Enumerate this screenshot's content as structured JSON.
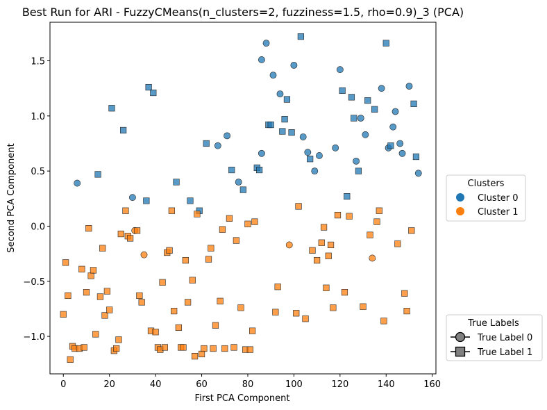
{
  "chart_data": {
    "type": "scatter",
    "title": "Best Run for ARI - FuzzyCMeans(n_clusters=2, fuzziness=1.5, rho=0.9)_3 (PCA)",
    "xlabel": "First PCA Component",
    "ylabel": "Second PCA Component",
    "xlim": [
      -5.8,
      161.6
    ],
    "ylim": [
      -1.34,
      1.85
    ],
    "xticks": [
      0,
      20,
      40,
      60,
      80,
      100,
      120,
      140,
      160
    ],
    "yticks": [
      -1.0,
      -0.5,
      0.0,
      0.5,
      1.0,
      1.5
    ],
    "xtick_labels": [
      "0",
      "20",
      "40",
      "60",
      "80",
      "100",
      "120",
      "140",
      "160"
    ],
    "ytick_labels": [
      "−1.0",
      "−0.5",
      "0.0",
      "0.5",
      "1.0",
      "1.5"
    ],
    "grid": false,
    "cluster_colors": {
      "0": "#1f77b4",
      "1": "#ff7f0e"
    },
    "legends": [
      {
        "title": "Clusters",
        "placement": "right-middle",
        "entries": [
          {
            "label": "Cluster 0",
            "marker": "circle",
            "color": "#1f77b4"
          },
          {
            "label": "Cluster 1",
            "marker": "circle",
            "color": "#ff7f0e"
          }
        ]
      },
      {
        "title": "True Labels",
        "placement": "right-bottom",
        "entries": [
          {
            "label": "True Label 0",
            "marker": "circle",
            "color": "#808080"
          },
          {
            "label": "True Label 1",
            "marker": "square",
            "color": "#808080"
          }
        ]
      }
    ],
    "series": [
      {
        "cluster": 0,
        "true_label": 0,
        "marker": "circle",
        "color": "#1f77b4",
        "points": [
          [
            6,
            0.39
          ],
          [
            30,
            0.26
          ],
          [
            67,
            0.73
          ],
          [
            71,
            0.82
          ],
          [
            76,
            0.4
          ],
          [
            86,
            0.66
          ],
          [
            86,
            1.51
          ],
          [
            88,
            1.66
          ],
          [
            91,
            1.37
          ],
          [
            94,
            1.2
          ],
          [
            100,
            1.46
          ],
          [
            104,
            0.81
          ],
          [
            106,
            0.67
          ],
          [
            109,
            0.5
          ],
          [
            111,
            0.64
          ],
          [
            118,
            0.71
          ],
          [
            120,
            1.42
          ],
          [
            127,
            0.59
          ],
          [
            129,
            0.98
          ],
          [
            131,
            0.83
          ],
          [
            138,
            1.25
          ],
          [
            141,
            0.71
          ],
          [
            143,
            0.9
          ],
          [
            144,
            1.04
          ],
          [
            146,
            0.75
          ],
          [
            147,
            0.66
          ],
          [
            150,
            1.27
          ],
          [
            154,
            0.48
          ]
        ]
      },
      {
        "cluster": 0,
        "true_label": 1,
        "marker": "square",
        "color": "#1f77b4",
        "points": [
          [
            15,
            0.47
          ],
          [
            21,
            1.07
          ],
          [
            26,
            0.87
          ],
          [
            36,
            0.23
          ],
          [
            37,
            1.26
          ],
          [
            39,
            1.21
          ],
          [
            49,
            0.4
          ],
          [
            55,
            0.23
          ],
          [
            59,
            0.14
          ],
          [
            62,
            0.75
          ],
          [
            73,
            0.51
          ],
          [
            78,
            0.33
          ],
          [
            84,
            0.53
          ],
          [
            85,
            0.51
          ],
          [
            89,
            0.92
          ],
          [
            90,
            0.92
          ],
          [
            95,
            0.86
          ],
          [
            96,
            0.97
          ],
          [
            97,
            1.15
          ],
          [
            99,
            0.85
          ],
          [
            103,
            1.72
          ],
          [
            107,
            0.61
          ],
          [
            121,
            1.23
          ],
          [
            123,
            0.27
          ],
          [
            125,
            1.17
          ],
          [
            126,
            0.98
          ],
          [
            128,
            0.5
          ],
          [
            132,
            1.14
          ],
          [
            135,
            1.06
          ],
          [
            140,
            1.66
          ],
          [
            142,
            0.73
          ],
          [
            152,
            1.11
          ],
          [
            153,
            0.63
          ]
        ]
      },
      {
        "cluster": 1,
        "true_label": 0,
        "marker": "circle",
        "color": "#ff7f0e",
        "points": [
          [
            31,
            -0.04
          ],
          [
            35,
            -0.26
          ],
          [
            98,
            -0.17
          ],
          [
            134,
            -0.29
          ]
        ]
      },
      {
        "cluster": 1,
        "true_label": 1,
        "marker": "square",
        "color": "#ff7f0e",
        "points": [
          [
            0,
            -0.8
          ],
          [
            1,
            -0.33
          ],
          [
            2,
            -0.63
          ],
          [
            3,
            -1.21
          ],
          [
            4,
            -1.09
          ],
          [
            5,
            -1.11
          ],
          [
            7,
            -1.11
          ],
          [
            8,
            -0.39
          ],
          [
            9,
            -1.1
          ],
          [
            10,
            -0.6
          ],
          [
            11,
            -0.02
          ],
          [
            12,
            -0.45
          ],
          [
            13,
            -0.4
          ],
          [
            14,
            -0.98
          ],
          [
            16,
            -0.64
          ],
          [
            17,
            -0.2
          ],
          [
            18,
            -0.81
          ],
          [
            19,
            -0.59
          ],
          [
            20,
            -0.76
          ],
          [
            22,
            -1.13
          ],
          [
            23,
            -1.11
          ],
          [
            24,
            -1.03
          ],
          [
            25,
            -0.07
          ],
          [
            27,
            0.14
          ],
          [
            28,
            -0.09
          ],
          [
            29,
            -0.11
          ],
          [
            32,
            -0.04
          ],
          [
            33,
            -0.63
          ],
          [
            34,
            -0.69
          ],
          [
            38,
            -0.95
          ],
          [
            40,
            -0.96
          ],
          [
            41,
            -1.1
          ],
          [
            42,
            -1.12
          ],
          [
            43,
            -0.51
          ],
          [
            44,
            -1.1
          ],
          [
            45,
            -0.24
          ],
          [
            46,
            -0.22
          ],
          [
            47,
            0.14
          ],
          [
            48,
            -0.77
          ],
          [
            50,
            -0.92
          ],
          [
            51,
            -1.1
          ],
          [
            52,
            -1.1
          ],
          [
            53,
            -0.31
          ],
          [
            54,
            -0.69
          ],
          [
            56,
            -0.49
          ],
          [
            57,
            -1.18
          ],
          [
            58,
            0.11
          ],
          [
            60,
            -1.16
          ],
          [
            61,
            -1.11
          ],
          [
            63,
            -0.3
          ],
          [
            64,
            -0.2
          ],
          [
            65,
            -1.11
          ],
          [
            66,
            -0.9
          ],
          [
            68,
            -0.68
          ],
          [
            69,
            -0.03
          ],
          [
            70,
            -1.11
          ],
          [
            72,
            0.07
          ],
          [
            74,
            -1.1
          ],
          [
            75,
            -0.13
          ],
          [
            77,
            -0.74
          ],
          [
            79,
            -1.12
          ],
          [
            80,
            0.02
          ],
          [
            81,
            -1.12
          ],
          [
            82,
            -0.95
          ],
          [
            83,
            0.04
          ],
          [
            92,
            -0.78
          ],
          [
            93,
            -0.55
          ],
          [
            101,
            -0.79
          ],
          [
            102,
            0.18
          ],
          [
            105,
            -0.84
          ],
          [
            108,
            -0.22
          ],
          [
            110,
            -0.31
          ],
          [
            112,
            -0.15
          ],
          [
            113,
            -0.01
          ],
          [
            114,
            -0.56
          ],
          [
            115,
            -0.27
          ],
          [
            116,
            -0.17
          ],
          [
            117,
            -0.74
          ],
          [
            119,
            0.1
          ],
          [
            122,
            -0.6
          ],
          [
            124,
            0.09
          ],
          [
            130,
            -0.73
          ],
          [
            133,
            -0.08
          ],
          [
            136,
            0.04
          ],
          [
            137,
            0.14
          ],
          [
            139,
            -0.86
          ],
          [
            145,
            -0.16
          ],
          [
            148,
            -0.61
          ],
          [
            149,
            -0.77
          ],
          [
            151,
            -0.04
          ]
        ]
      }
    ]
  }
}
